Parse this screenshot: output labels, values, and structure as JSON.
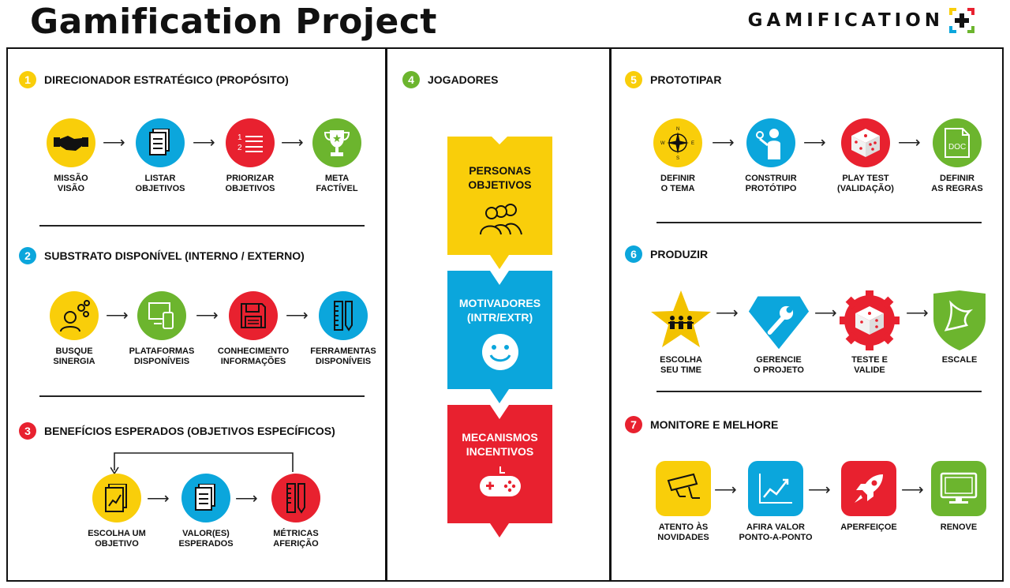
{
  "header": {
    "title": "Gamification Project",
    "logo_text": "GAMIFICATION"
  },
  "colors": {
    "yellow": "#F9CE0A",
    "blue": "#0BA6DC",
    "red": "#E8212F",
    "green": "#6CB52E",
    "gold": "#F2C200"
  },
  "sections": {
    "s1": {
      "number": "1",
      "label": "DIRECIONADOR ESTRATÉGICO  (PROPÓSITO)"
    },
    "s2": {
      "number": "2",
      "label": "SUBSTRATO DISPONÍVEL  (INTERNO / EXTERNO)"
    },
    "s3": {
      "number": "3",
      "label": "BENEFÍCIOS ESPERADOS (OBJETIVOS ESPECÍFICOS)"
    },
    "s4": {
      "number": "4",
      "label": "JOGADORES"
    },
    "s5": {
      "number": "5",
      "label": "PROTOTIPAR"
    },
    "s6": {
      "number": "6",
      "label": "PRODUZIR"
    },
    "s7": {
      "number": "7",
      "label": "MONITORE E MELHORE"
    }
  },
  "steps": {
    "s1": [
      {
        "l1": "MISSÃO",
        "l2": "VISÃO",
        "icon": "handshake-icon"
      },
      {
        "l1": "LISTAR",
        "l2": "OBJETIVOS",
        "icon": "document-icon"
      },
      {
        "l1": "PRIORIZAR",
        "l2": "OBJETIVOS",
        "icon": "numbered-list-icon"
      },
      {
        "l1": "META",
        "l2": "FACTÍVEL",
        "icon": "trophy-icon"
      }
    ],
    "s2": [
      {
        "l1": "BUSQUE",
        "l2": "SINERGIA",
        "icon": "person-gears-icon"
      },
      {
        "l1": "PLATAFORMAS",
        "l2": "DISPONÍVEIS",
        "icon": "devices-icon"
      },
      {
        "l1": "CONHECIMENTO",
        "l2": "INFORMAÇÕES",
        "icon": "floppy-disk-icon"
      },
      {
        "l1": "FERRAMENTAS",
        "l2": "DISPONÍVEIS",
        "icon": "ruler-pencil-icon"
      }
    ],
    "s3": [
      {
        "l1": "ESCOLHA UM",
        "l2": "OBJETIVO",
        "icon": "chart-document-icon"
      },
      {
        "l1": "VALOR(ES)",
        "l2": "ESPERADOS",
        "icon": "document-icon"
      },
      {
        "l1": "MÉTRICAS",
        "l2": "AFERIÇÃO",
        "icon": "ruler-pencil-icon"
      }
    ],
    "s5": [
      {
        "l1": "DEFINIR",
        "l2": "O TEMA",
        "icon": "compass-icon"
      },
      {
        "l1": "CONSTRUIR",
        "l2": "PROTÓTIPO",
        "icon": "person-idea-icon"
      },
      {
        "l1": "PLAY TEST",
        "l2": "(VALIDAÇÃO)",
        "icon": "dice-icon"
      },
      {
        "l1": "DEFINIR",
        "l2": "AS REGRAS",
        "icon": "doc-file-icon",
        "badge": "DOC"
      }
    ],
    "s6": [
      {
        "l1": "ESCOLHA",
        "l2": "SEU TIME",
        "icon": "team-star-icon"
      },
      {
        "l1": "GERENCIE",
        "l2": "O PROJETO",
        "icon": "wrench-diamond-icon"
      },
      {
        "l1": "TESTE E",
        "l2": "VALIDE",
        "icon": "dice-gear-icon"
      },
      {
        "l1": "ESCALE",
        "l2": "",
        "icon": "bird-shield-icon"
      }
    ],
    "s7": [
      {
        "l1": "ATENTO ÀS",
        "l2": "NOVIDADES",
        "icon": "camera-icon"
      },
      {
        "l1": "AFIRA VALOR",
        "l2": "PONTO-A-PONTO",
        "icon": "line-chart-icon"
      },
      {
        "l1": "APERFEIÇOE",
        "l2": "",
        "icon": "rocket-icon"
      },
      {
        "l1": "RENOVE",
        "l2": "",
        "icon": "monitor-icon"
      }
    ]
  },
  "players": {
    "b1": {
      "l1": "PERSONAS",
      "l2": "OBJETIVOS",
      "icon": "people-icon"
    },
    "b2": {
      "l1": "MOTIVADORES",
      "l2": "(INTR/EXTR)",
      "icon": "smiley-icon"
    },
    "b3": {
      "l1": "MECANISMOS",
      "l2": "INCENTIVOS",
      "icon": "gamepad-icon"
    }
  }
}
